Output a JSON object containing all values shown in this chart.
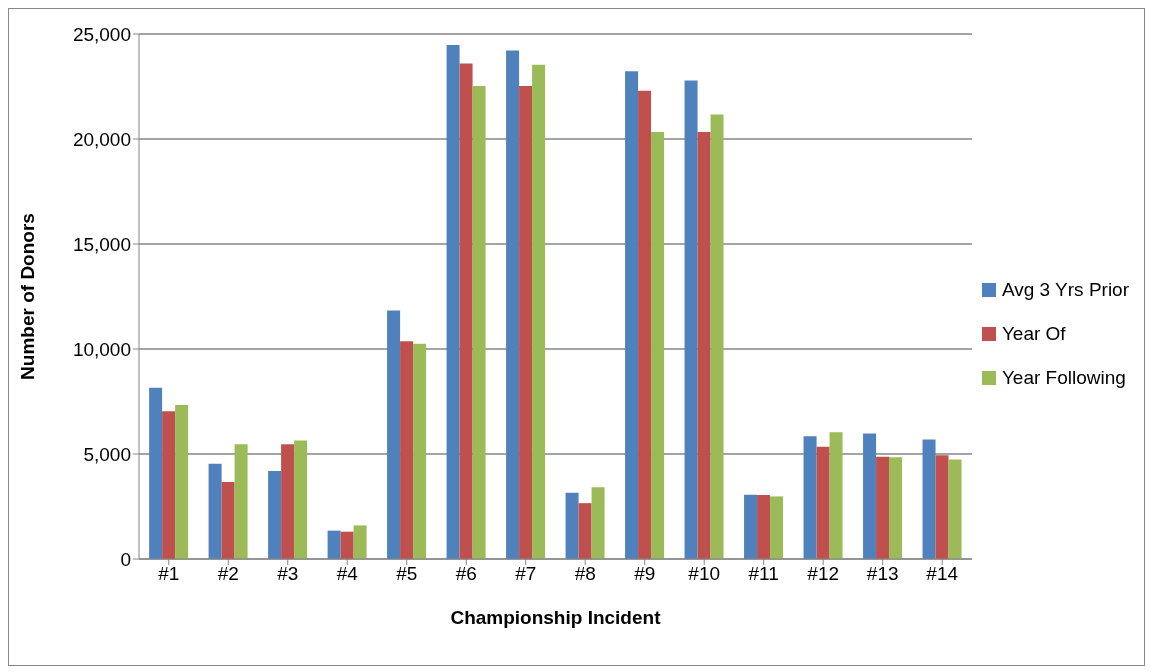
{
  "chart_data": {
    "type": "bar",
    "xlabel": "Championship Incident",
    "ylabel": "Number of Donors",
    "categories": [
      "#1",
      "#2",
      "#3",
      "#4",
      "#5",
      "#6",
      "#7",
      "#8",
      "#9",
      "#10",
      "#11",
      "#12",
      "#13",
      "#14"
    ],
    "series": [
      {
        "name": "Avg 3 Yrs Prior",
        "color": "#4f81bd",
        "values": [
          8150,
          4530,
          4190,
          1350,
          11830,
          24480,
          24220,
          3160,
          23230,
          22790,
          3060,
          5840,
          5980,
          5690
        ]
      },
      {
        "name": "Year Of",
        "color": "#c0504d",
        "values": [
          7040,
          3670,
          5460,
          1300,
          10370,
          23590,
          22520,
          2660,
          22300,
          20330,
          3050,
          5350,
          4870,
          4940
        ]
      },
      {
        "name": "Year Following",
        "color": "#9bbb59",
        "values": [
          7330,
          5460,
          5640,
          1600,
          10250,
          22520,
          23530,
          3420,
          20330,
          21170,
          2980,
          6030,
          4840,
          4740
        ]
      }
    ],
    "ylim": [
      0,
      25000
    ],
    "yticks": [
      0,
      {
        "value": 5000,
        "label": "5,000"
      },
      {
        "value": 10000,
        "label": "10,000"
      },
      {
        "value": 15000,
        "label": "15,000"
      },
      {
        "value": 20000,
        "label": "20,000"
      },
      {
        "value": 25000,
        "label": "25,000"
      }
    ],
    "grid": "y",
    "legend": "right"
  }
}
